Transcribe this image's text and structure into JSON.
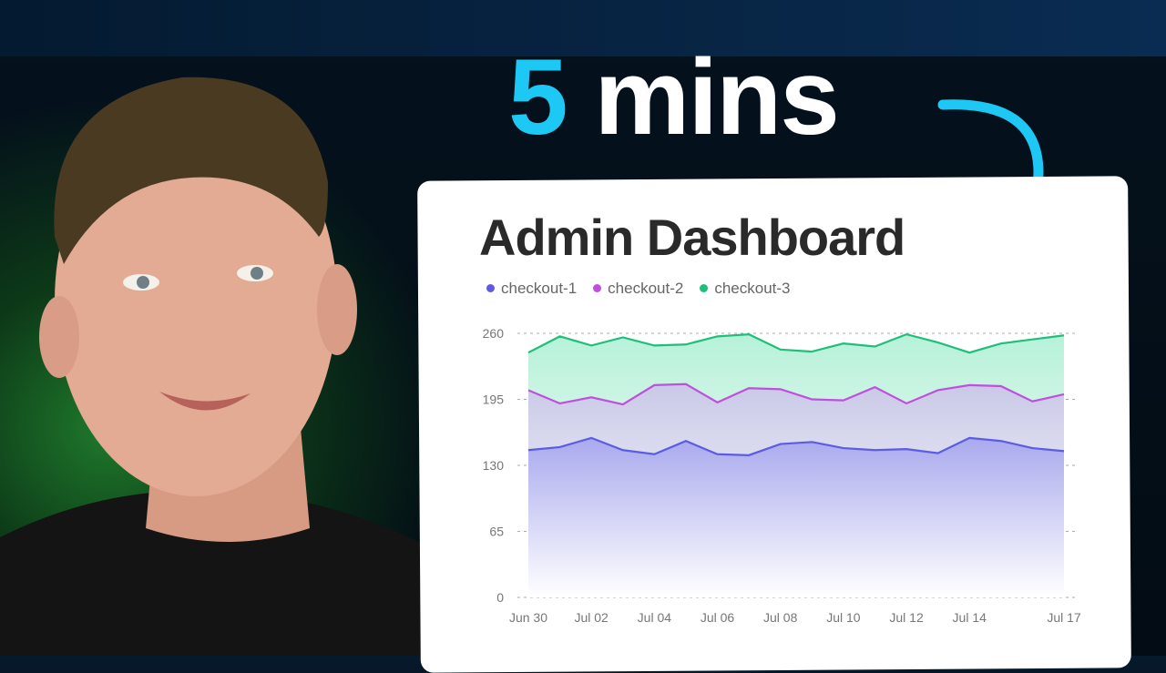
{
  "headline": {
    "number": "5",
    "text": " mins"
  },
  "colors": {
    "accent": "#1ec8f5",
    "checkout-1": "#5b5be6",
    "checkout-2": "#c04fe0",
    "checkout-3": "#1fbf7a"
  },
  "chart_data": {
    "type": "area",
    "stacked": true,
    "title": "Admin Dashboard",
    "x": [
      "Jun 30",
      "Jul 01",
      "Jul 02",
      "Jul 03",
      "Jul 04",
      "Jul 05",
      "Jul 06",
      "Jul 07",
      "Jul 08",
      "Jul 09",
      "Jul 10",
      "Jul 11",
      "Jul 12",
      "Jul 13",
      "Jul 14",
      "Jul 15",
      "Jul 16",
      "Jul 17"
    ],
    "xticks": [
      "Jun 30",
      "Jul 02",
      "Jul 04",
      "Jul 06",
      "Jul 08",
      "Jul 10",
      "Jul 12",
      "Jul 14",
      "Jul 17"
    ],
    "yticks": [
      "0",
      "65",
      "130",
      "195",
      "260"
    ],
    "ylim": [
      0,
      260
    ],
    "grid": true,
    "legend_position": "top-left",
    "series": [
      {
        "name": "checkout-1",
        "values": [
          145,
          148,
          157,
          145,
          141,
          154,
          141,
          140,
          151,
          153,
          147,
          145,
          146,
          142,
          157,
          154,
          147,
          144
        ]
      },
      {
        "name": "checkout-2",
        "values": [
          59,
          43,
          40,
          45,
          68,
          56,
          51,
          66,
          54,
          42,
          47,
          62,
          45,
          62,
          52,
          54,
          46,
          56
        ]
      },
      {
        "name": "checkout-3",
        "values": [
          37,
          66,
          51,
          66,
          39,
          39,
          65,
          53,
          39,
          47,
          56,
          40,
          68,
          47,
          32,
          42,
          61,
          58
        ]
      }
    ]
  }
}
